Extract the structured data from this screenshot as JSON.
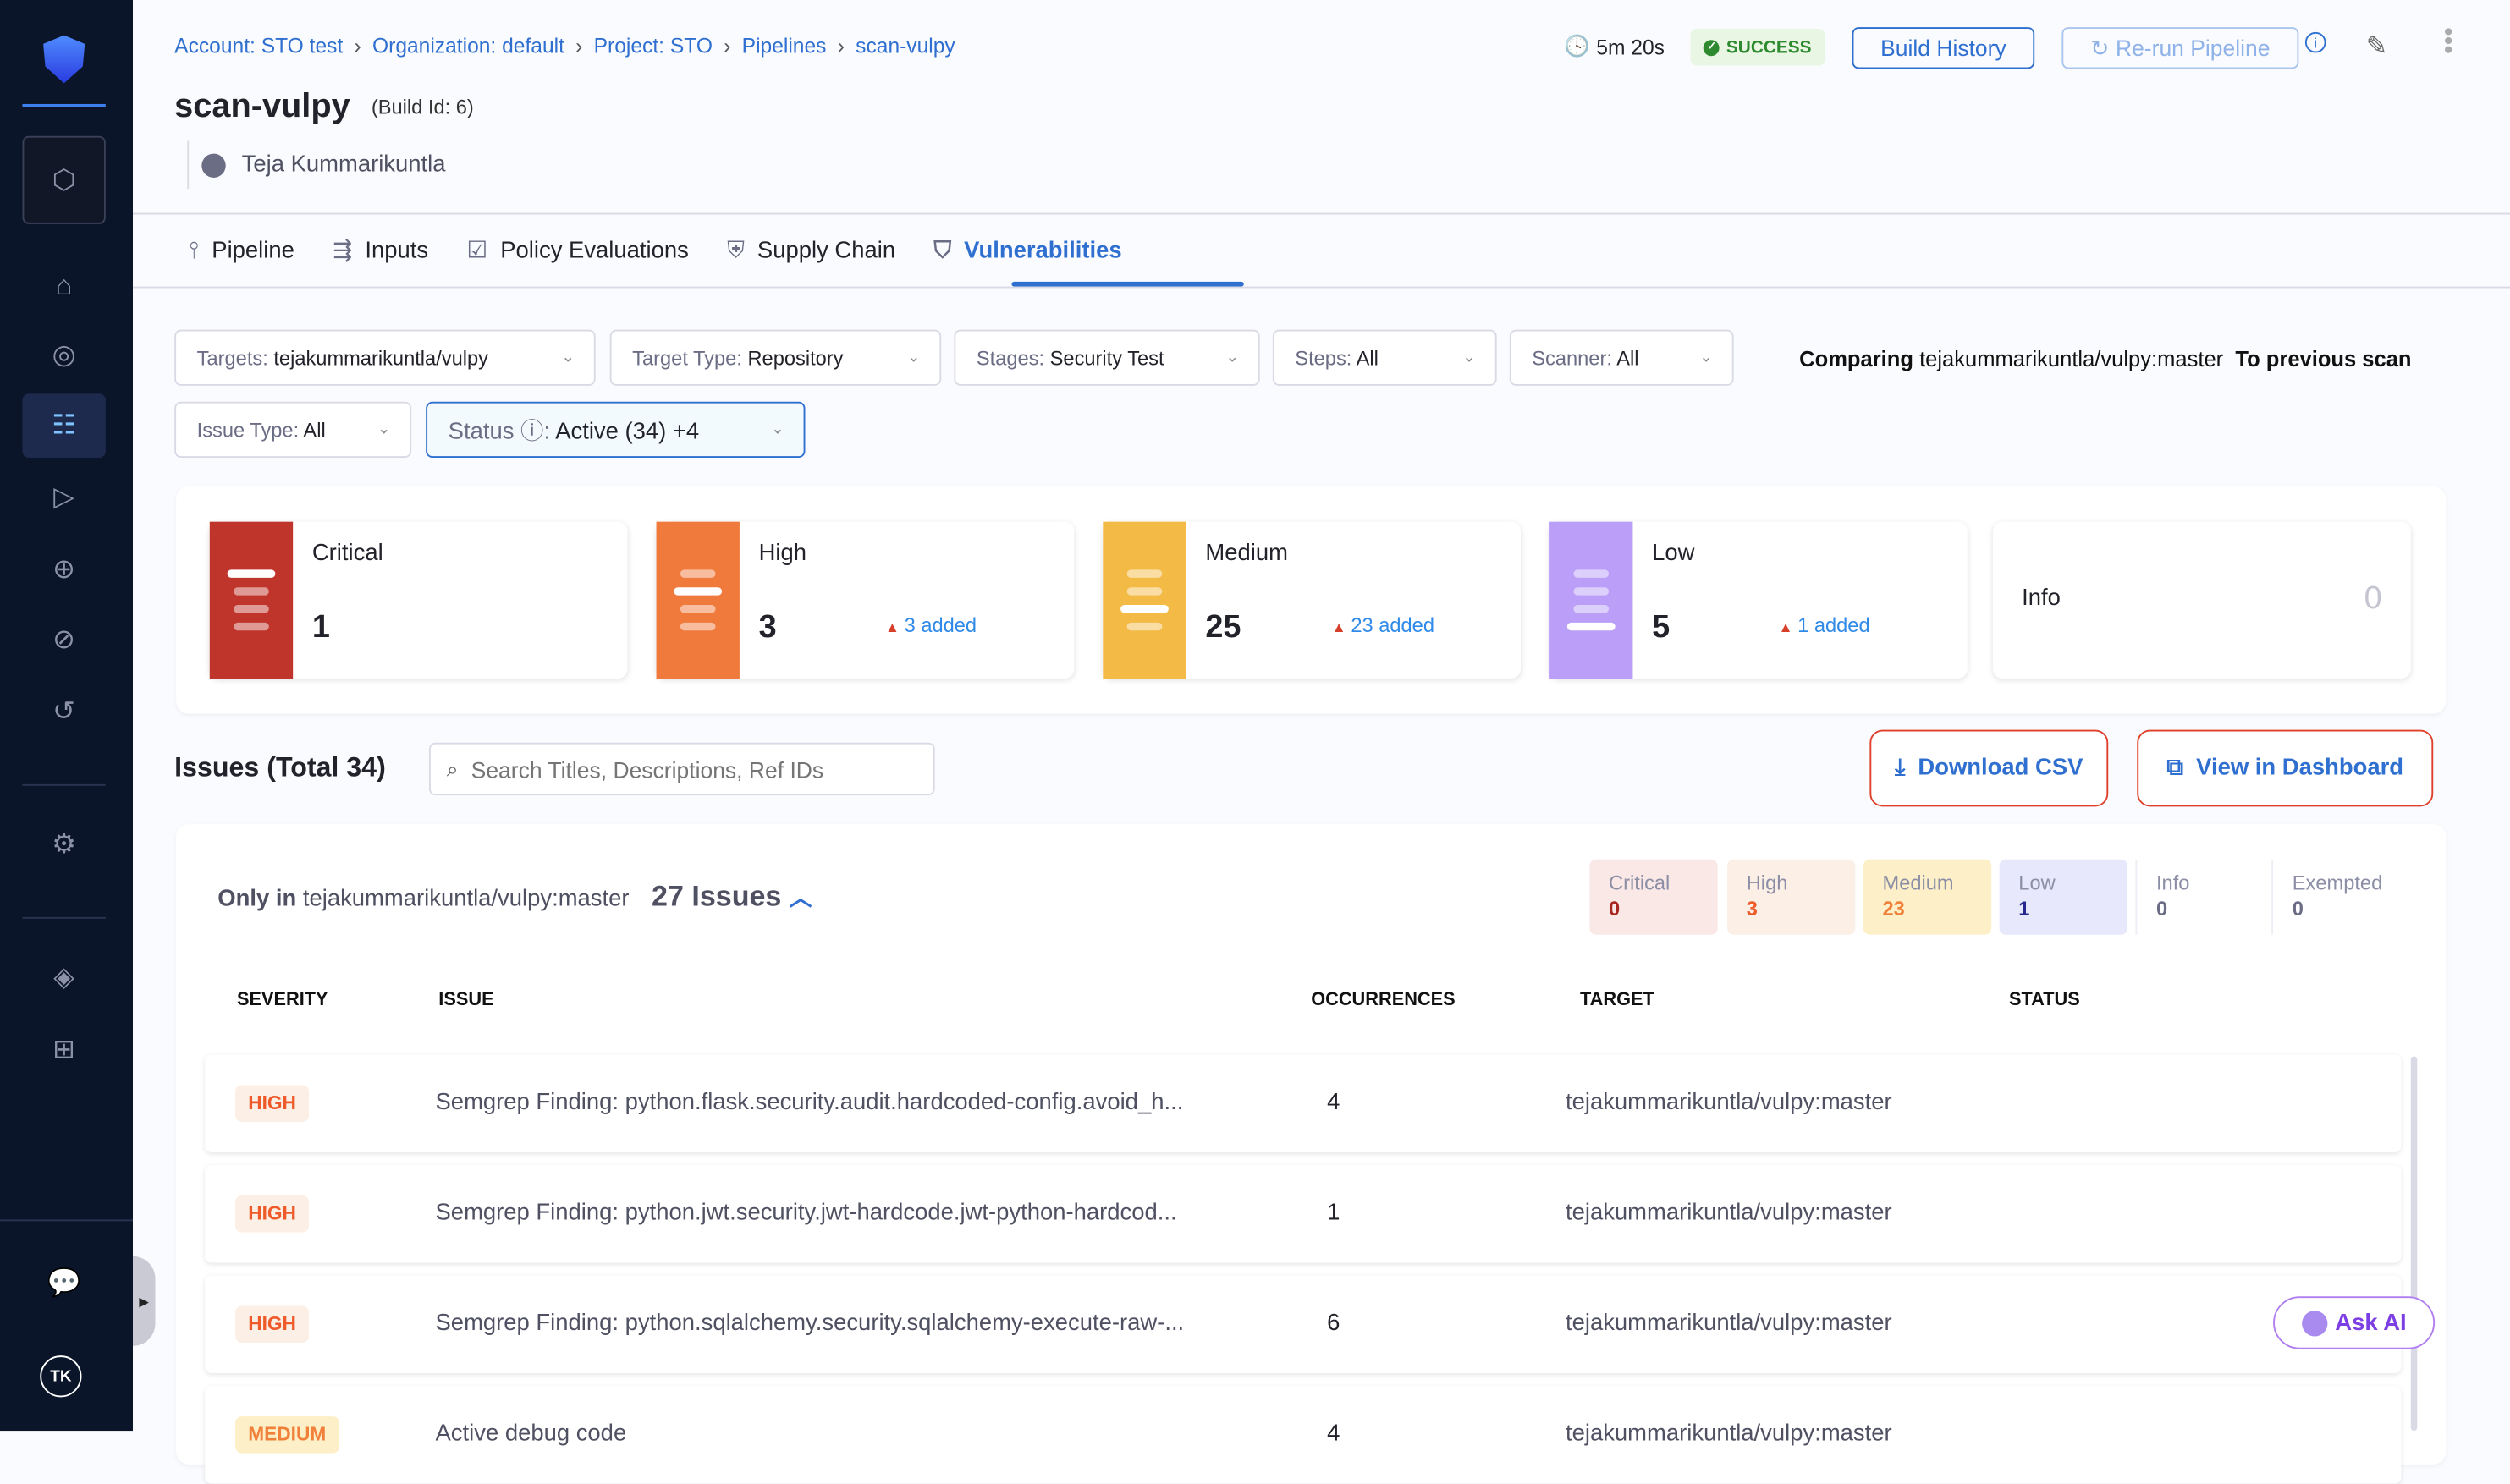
{
  "breadcrumb": [
    "Account: STO test",
    "Organization: default",
    "Project: STO",
    "Pipelines",
    "scan-vulpy"
  ],
  "header": {
    "title": "scan-vulpy",
    "build_id": "(Build Id: 6)",
    "user": "Teja Kummarikuntla",
    "duration": "5m 20s",
    "status": "SUCCESS",
    "build_history": "Build History",
    "rerun": "Re-run Pipeline"
  },
  "tabs": [
    {
      "label": "Pipeline"
    },
    {
      "label": "Inputs"
    },
    {
      "label": "Policy Evaluations"
    },
    {
      "label": "Supply Chain"
    },
    {
      "label": "Vulnerabilities"
    }
  ],
  "filters": {
    "targets": {
      "key": "Targets: ",
      "value": "tejakummarikuntla/vulpy"
    },
    "target_type": {
      "key": "Target Type: ",
      "value": "Repository"
    },
    "stages": {
      "key": "Stages: ",
      "value": "Security Test"
    },
    "steps": {
      "key": "Steps: ",
      "value": "All"
    },
    "scanner": {
      "key": "Scanner: ",
      "value": "All"
    },
    "issue_type": {
      "key": "Issue Type: ",
      "value": "All"
    },
    "status": {
      "key": "Status ⓘ: ",
      "value": "Active (34) +4"
    }
  },
  "comparing": {
    "label": "Comparing",
    "target": "tejakummarikuntla/vulpy:master",
    "to": "To previous scan"
  },
  "severity_cards": [
    {
      "label": "Critical",
      "count": "1",
      "added": "",
      "color": "#c0352b"
    },
    {
      "label": "High",
      "count": "3",
      "added": "3 added",
      "color": "#f07a3c"
    },
    {
      "label": "Medium",
      "count": "25",
      "added": "23 added",
      "color": "#f3ba46"
    },
    {
      "label": "Low",
      "count": "5",
      "added": "1 added",
      "color": "#bb9ef7"
    },
    {
      "label": "Info",
      "count": "0"
    }
  ],
  "issues": {
    "title": "Issues (Total 34)",
    "search_placeholder": "Search Titles, Descriptions, Ref IDs",
    "download": "Download CSV",
    "dashboard": "View in Dashboard"
  },
  "group": {
    "prefix": "Only in",
    "target": "tejakummarikuntla/vulpy:master",
    "count": "27 Issues"
  },
  "chips": [
    {
      "label": "Critical",
      "value": "0",
      "bg": "#f9e8e6",
      "color": "#a8261e"
    },
    {
      "label": "High",
      "value": "3",
      "bg": "#fcefe5",
      "color": "#ee5a2a"
    },
    {
      "label": "Medium",
      "value": "23",
      "bg": "#fdf0c8",
      "color": "#f0803a"
    },
    {
      "label": "Low",
      "value": "1",
      "bg": "#e7e8fb",
      "color": "#27288f"
    },
    {
      "label": "Info",
      "value": "0",
      "bg": "#fff",
      "color": "#6b6d85"
    },
    {
      "label": "Exempted",
      "value": "0",
      "bg": "#fff",
      "color": "#6b6d85"
    }
  ],
  "columns": [
    "SEVERITY",
    "ISSUE",
    "OCCURRENCES",
    "TARGET",
    "STATUS"
  ],
  "rows": [
    {
      "severity": "HIGH",
      "issue": "Semgrep Finding: python.flask.security.audit.hardcoded-config.avoid_h...",
      "occurrences": "4",
      "target": "tejakummarikuntla/vulpy:master"
    },
    {
      "severity": "HIGH",
      "issue": "Semgrep Finding: python.jwt.security.jwt-hardcode.jwt-python-hardcod...",
      "occurrences": "1",
      "target": "tejakummarikuntla/vulpy:master"
    },
    {
      "severity": "HIGH",
      "issue": "Semgrep Finding: python.sqlalchemy.security.sqlalchemy-execute-raw-...",
      "occurrences": "6",
      "target": "tejakummarikuntla/vulpy:master"
    },
    {
      "severity": "MEDIUM",
      "issue": "Active debug code",
      "occurrences": "4",
      "target": "tejakummarikuntla/vulpy:master"
    }
  ],
  "ask_ai": "Ask AI",
  "avatar": "TK"
}
